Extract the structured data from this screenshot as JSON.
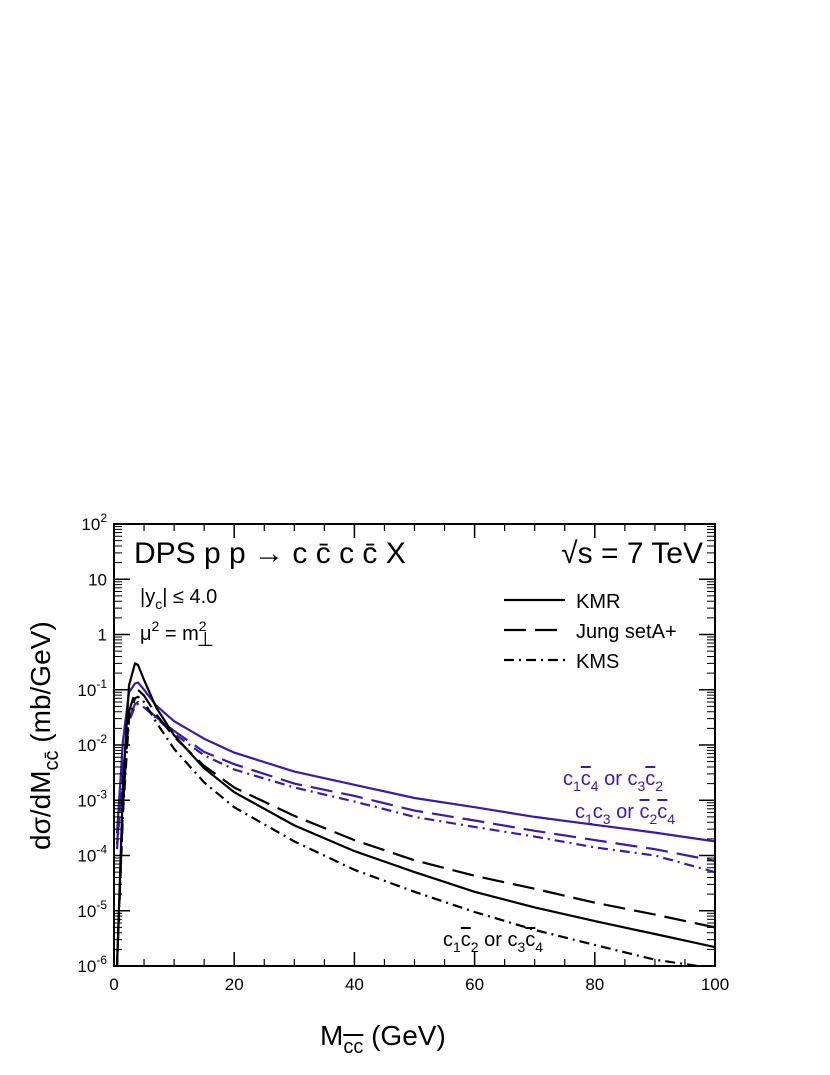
{
  "chart_data": {
    "type": "line",
    "title": "DPS  p p → c c̄ c c̄ X",
    "energy_label": "√s = 7 TeV",
    "cuts": [
      "|y_c| ≤ 4.0",
      "μ² = m⊥²"
    ],
    "xlabel": "M_cc̄    (GeV)",
    "ylabel": "dσ/dM_cc̄    (mb/GeV)",
    "xlim": [
      0,
      100
    ],
    "ylim": [
      1e-06,
      100
    ],
    "yscale": "log",
    "x_ticks": [
      0,
      20,
      40,
      60,
      80,
      100
    ],
    "y_ticks": [
      {
        "value": 1e-06,
        "label": "10^-6"
      },
      {
        "value": 1e-05,
        "label": "10^-5"
      },
      {
        "value": 0.0001,
        "label": "10^-4"
      },
      {
        "value": 0.001,
        "label": "10^-3"
      },
      {
        "value": 0.01,
        "label": "10^-2"
      },
      {
        "value": 0.1,
        "label": "10^-1"
      },
      {
        "value": 1,
        "label": "1"
      },
      {
        "value": 10,
        "label": "10"
      },
      {
        "value": 100,
        "label": "10^2"
      }
    ],
    "grid": false,
    "legend": {
      "placement": "top-right",
      "entries": [
        {
          "label": "KMR",
          "style": "solid"
        },
        {
          "label": "Jung setA+",
          "style": "dashed"
        },
        {
          "label": "KMS",
          "style": "dash-dot"
        }
      ]
    },
    "annotations": {
      "purple_1": {
        "a": "c",
        "a_sub": "1",
        "b": "c",
        "b_sub": "4",
        "mid": " or ",
        "c": "c",
        "c_sub": "3",
        "d": "c",
        "d_sub": "2"
      },
      "purple_2": {
        "a": "c",
        "a_sub": "1",
        "b": "c",
        "b_sub": "3",
        "mid": " or ",
        "c": "c",
        "c_sub": "2",
        "d": "c",
        "d_sub": "4"
      },
      "black_1": {
        "a": "c",
        "a_sub": "1",
        "b": "c",
        "b_sub": "2",
        "mid": " or ",
        "c": "c",
        "c_sub": "3",
        "d": "c",
        "d_sub": "4"
      }
    },
    "colors": {
      "black": "#000000",
      "purple": "#3d1aa6"
    },
    "series": [
      {
        "group": "c1c4bar or c3c2bar",
        "style": "solid",
        "color": "#3d1aa6",
        "x": [
          0.5,
          1.5,
          2.5,
          3.5,
          4,
          5,
          7,
          10,
          15,
          20,
          30,
          40,
          50,
          60,
          70,
          80,
          90,
          100
        ],
        "y": [
          0.00025,
          0.012,
          0.09,
          0.13,
          0.135,
          0.1,
          0.052,
          0.027,
          0.013,
          0.0073,
          0.0033,
          0.0019,
          0.0011,
          0.00075,
          0.0005,
          0.00036,
          0.00026,
          0.00018
        ]
      },
      {
        "group": "c1c4bar or c3c2bar",
        "style": "dashed",
        "color": "#3d1aa6",
        "x": [
          0.5,
          1.5,
          2.5,
          3.5,
          4,
          5,
          7,
          10,
          15,
          20,
          30,
          40,
          50,
          60,
          70,
          80,
          90,
          100
        ],
        "y": [
          0.00016,
          0.004,
          0.03,
          0.055,
          0.06,
          0.05,
          0.032,
          0.018,
          0.0075,
          0.0045,
          0.002,
          0.0012,
          0.00065,
          0.00043,
          0.00028,
          0.00019,
          0.00013,
          8e-05
        ]
      },
      {
        "group": "c1c4bar or c3c2bar",
        "style": "dash-dot",
        "color": "#3d1aa6",
        "x": [
          0.5,
          1.5,
          2.5,
          3.5,
          4,
          5,
          7,
          10,
          15,
          20,
          30,
          40,
          50,
          60,
          70,
          80,
          90,
          100
        ],
        "y": [
          0.00013,
          0.0035,
          0.027,
          0.05,
          0.055,
          0.048,
          0.031,
          0.016,
          0.0065,
          0.0036,
          0.0017,
          0.00095,
          0.0005,
          0.00033,
          0.00022,
          0.00014,
          0.0001,
          5e-05
        ]
      },
      {
        "group": "c1c2bar or c3c4bar",
        "style": "solid",
        "color": "#000000",
        "x": [
          0.5,
          1.5,
          2.5,
          3.5,
          4,
          5,
          7,
          10,
          15,
          20,
          30,
          40,
          50,
          60,
          70,
          80,
          90,
          100
        ],
        "y": [
          1e-06,
          0.0018,
          0.12,
          0.3,
          0.28,
          0.15,
          0.048,
          0.015,
          0.0038,
          0.0014,
          0.00035,
          0.00012,
          5e-05,
          2.2e-05,
          1.15e-05,
          6.5e-06,
          3.8e-06,
          2.2e-06
        ]
      },
      {
        "group": "c1c2bar or c3c4bar",
        "style": "dashed",
        "color": "#000000",
        "x": [
          0.5,
          1.5,
          2.5,
          3.5,
          4,
          5,
          7,
          10,
          15,
          20,
          30,
          40,
          50,
          60,
          70,
          80,
          90,
          100
        ],
        "y": [
          1e-06,
          0.0008,
          0.04,
          0.09,
          0.1,
          0.078,
          0.036,
          0.014,
          0.0042,
          0.0017,
          0.00052,
          0.00019,
          8.2e-05,
          4.3e-05,
          2.5e-05,
          1.4e-05,
          8.5e-06,
          5e-06
        ]
      },
      {
        "group": "c1c2bar or c3c4bar",
        "style": "dash-dot",
        "color": "#000000",
        "x": [
          0.5,
          1.5,
          2.5,
          3.5,
          4,
          5,
          7,
          10,
          15,
          20,
          30,
          40,
          50,
          60,
          70,
          80,
          90,
          100
        ],
        "y": [
          1e-06,
          0.0006,
          0.03,
          0.07,
          0.075,
          0.06,
          0.026,
          0.0085,
          0.0021,
          0.00075,
          0.00018,
          5.5e-05,
          2.2e-05,
          9.5e-06,
          4.5e-06,
          2.4e-06,
          1.3e-06,
          9e-07
        ]
      }
    ]
  }
}
